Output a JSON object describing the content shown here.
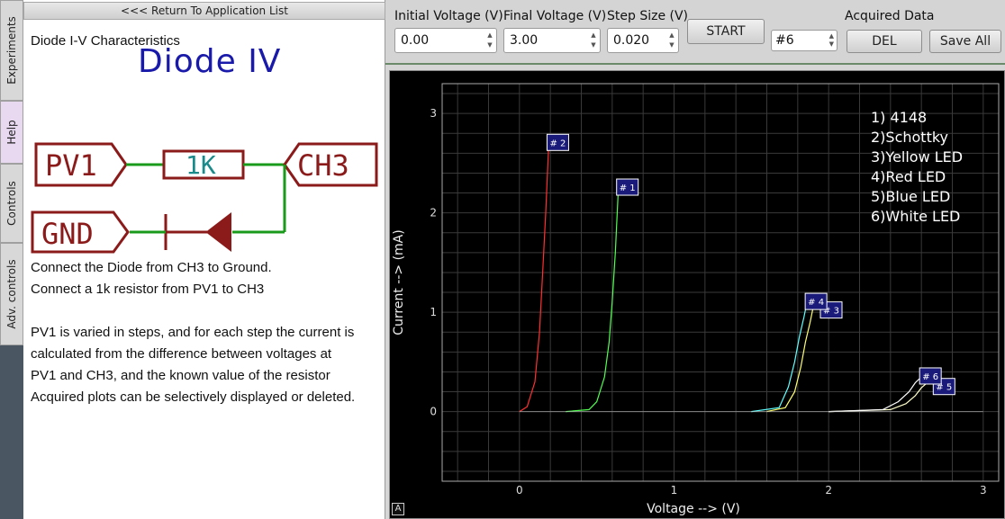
{
  "side_tabs": [
    {
      "label": "Experiments"
    },
    {
      "label": "Help"
    },
    {
      "label": "Controls"
    },
    {
      "label": "Adv. controls"
    }
  ],
  "help": {
    "return_label": "<<< Return To Application List",
    "title": "Diode I-V Characteristics",
    "schematic": {
      "title": "Diode IV",
      "pv1": "PV1",
      "resistor": "1K",
      "ch3": "CH3",
      "gnd": "GND"
    },
    "lines": [
      "Connect the Diode from CH3 to Ground.",
      "Connect a 1k resistor from PV1 to CH3",
      "PV1 is varied in steps, and for each step the current is",
      "calculated from the difference between voltages at",
      "PV1 and CH3, and the known value of the resistor",
      "Acquired plots can be selectively displayed or deleted."
    ]
  },
  "controls": {
    "initial_voltage_label": "Initial Voltage (V)",
    "initial_voltage": "0.00",
    "final_voltage_label": "Final Voltage (V)",
    "final_voltage": "3.00",
    "step_size_label": "Step Size (V)",
    "step_size": "0.020",
    "start_label": "START",
    "acquired_title": "Acquired Data",
    "selected_trace": "#6",
    "del_label": "DEL",
    "save_all_label": "Save All"
  },
  "legend": [
    "1) 4148",
    "2)Schottky",
    "3)Yellow LED",
    "4)Red LED",
    "5)Blue LED",
    "6)White LED"
  ],
  "autoscale_label": "A",
  "colors": {
    "red": "#ff3030",
    "green": "#50ff50",
    "yellow": "#ffff70",
    "cyan": "#60ffff",
    "white": "#ffffff",
    "schematic": "#8b1a1a",
    "wire": "#1a9a1a"
  },
  "chart_data": {
    "type": "line",
    "xlabel": "Voltage --> (V)",
    "ylabel": "Current --> (mA)",
    "xlim": [
      -0.5,
      3.1
    ],
    "ylim": [
      -0.7,
      3.3
    ],
    "xticks": [
      0,
      1,
      2,
      3
    ],
    "yticks": [
      0,
      1,
      2,
      3
    ],
    "grid": true,
    "series": [
      {
        "name": "# 1",
        "color": "#50ff50",
        "x": [
          0.3,
          0.45,
          0.5,
          0.55,
          0.58,
          0.6,
          0.62,
          0.64
        ],
        "y": [
          0,
          0.02,
          0.1,
          0.35,
          0.7,
          1.1,
          1.6,
          2.25
        ],
        "label_at": [
          0.64,
          2.25
        ]
      },
      {
        "name": "# 2",
        "color": "#ff3030",
        "x": [
          0.0,
          0.05,
          0.1,
          0.13,
          0.15,
          0.17,
          0.19
        ],
        "y": [
          0,
          0.05,
          0.3,
          0.8,
          1.4,
          2.0,
          2.7
        ],
        "label_at": [
          0.19,
          2.7
        ]
      },
      {
        "name": "# 3",
        "color": "#ffff70",
        "x": [
          1.6,
          1.72,
          1.78,
          1.82,
          1.85,
          1.88,
          1.9
        ],
        "y": [
          0,
          0.04,
          0.2,
          0.45,
          0.7,
          0.9,
          1.05
        ],
        "label_at": [
          1.9,
          1.05
        ]
      },
      {
        "name": "# 4",
        "color": "#60ffff",
        "x": [
          1.5,
          1.68,
          1.74,
          1.78,
          1.81,
          1.84,
          1.86
        ],
        "y": [
          0,
          0.04,
          0.25,
          0.5,
          0.75,
          0.95,
          1.1
        ],
        "label_at": [
          1.86,
          1.1
        ]
      },
      {
        "name": "# 5",
        "color": "#ffffcc",
        "x": [
          2.0,
          2.4,
          2.5,
          2.56,
          2.6,
          2.63
        ],
        "y": [
          0,
          0.02,
          0.08,
          0.16,
          0.24,
          0.28
        ],
        "label_at": [
          2.63,
          0.28
        ]
      },
      {
        "name": "# 6",
        "color": "#ffffff",
        "x": [
          2.0,
          2.35,
          2.45,
          2.52,
          2.56,
          2.6
        ],
        "y": [
          0,
          0.02,
          0.1,
          0.2,
          0.29,
          0.35
        ],
        "label_at": [
          2.6,
          0.35
        ]
      }
    ]
  }
}
